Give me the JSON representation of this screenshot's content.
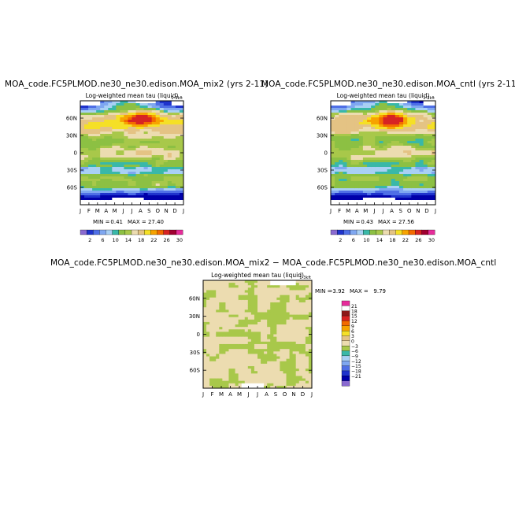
{
  "panels": [
    {
      "id": "mix2",
      "title": "MOA_code.FC5PLMOD.ne30_ne30.edison.MOA_mix2  (yrs 2-11)",
      "subtitle": "Log-weighted mean tau (liquid)",
      "unit": "1-3kft",
      "min_label": "MIN =",
      "min_value": "0.41",
      "max_label": "MAX =",
      "max_value": "27.40"
    },
    {
      "id": "cntl",
      "title": "MOA_code.FC5PLMOD.ne30_ne30.edison.MOA_cntl  (yrs 2-11)",
      "subtitle": "Log-weighted mean tau (liquid)",
      "unit": "1-3kft",
      "min_label": "MIN =",
      "min_value": "0.43",
      "max_label": "MAX =",
      "max_value": "27.56"
    },
    {
      "id": "diff",
      "title": "MOA_code.FC5PLMOD.ne30_ne30.edison.MOA_mix2 − MOA_code.FC5PLMOD.ne30_ne30.edison.MOA_cntl",
      "subtitle": "Log-weighted mean tau (liquid)",
      "unit": "1-3kft",
      "min_label": "MIN =",
      "min_value": "-3.92",
      "max_label": "MAX =",
      "max_value": "9.79"
    }
  ],
  "chart_data": [
    {
      "type": "heatmap",
      "title": "MOA_code.FC5PLMOD.ne30_ne30.edison.MOA_mix2  (yrs 2-11)",
      "subtitle": "Log-weighted mean tau (liquid)",
      "x_ticks": [
        "J",
        "F",
        "M",
        "A",
        "M",
        "J",
        "J",
        "A",
        "S",
        "O",
        "N",
        "D",
        "J"
      ],
      "y_ticks": [
        "60N",
        "30N",
        "0",
        "30S",
        "60S"
      ],
      "y_tick_values": [
        60,
        30,
        0,
        -30,
        -60
      ],
      "ylim": [
        -90,
        90
      ],
      "min": 0.41,
      "max": 27.4,
      "colorbar_labels": [
        "2",
        "6",
        "10",
        "14",
        "18",
        "22",
        "26",
        "30"
      ],
      "colorbar_colors": [
        "#8a6ad0",
        "#1f33cc",
        "#4f6fe6",
        "#7fa7f0",
        "#a9d0f4",
        "#39b8a8",
        "#8cc043",
        "#a8c84a",
        "#ecdcb0",
        "#e4c384",
        "#f5e026",
        "#f7a300",
        "#f36a00",
        "#d72323",
        "#a00030",
        "#e62c9a"
      ]
    },
    {
      "type": "heatmap",
      "title": "MOA_code.FC5PLMOD.ne30_ne30.edison.MOA_cntl  (yrs 2-11)",
      "subtitle": "Log-weighted mean tau (liquid)",
      "x_ticks": [
        "J",
        "F",
        "M",
        "A",
        "M",
        "J",
        "J",
        "A",
        "S",
        "O",
        "N",
        "D",
        "J"
      ],
      "y_ticks": [
        "60N",
        "30N",
        "0",
        "30S",
        "60S"
      ],
      "y_tick_values": [
        60,
        30,
        0,
        -30,
        -60
      ],
      "ylim": [
        -90,
        90
      ],
      "min": 0.43,
      "max": 27.56,
      "colorbar_labels": [
        "2",
        "6",
        "10",
        "14",
        "18",
        "22",
        "26",
        "30"
      ],
      "colorbar_colors": [
        "#8a6ad0",
        "#1f33cc",
        "#4f6fe6",
        "#7fa7f0",
        "#a9d0f4",
        "#39b8a8",
        "#8cc043",
        "#a8c84a",
        "#ecdcb0",
        "#e4c384",
        "#f5e026",
        "#f7a300",
        "#f36a00",
        "#d72323",
        "#a00030",
        "#e62c9a"
      ]
    },
    {
      "type": "heatmap",
      "title": "MOA_code.FC5PLMOD.ne30_ne30.edison.MOA_mix2 − MOA_code.FC5PLMOD.ne30_ne30.edison.MOA_cntl",
      "subtitle": "Log-weighted mean tau (liquid)",
      "x_ticks": [
        "J",
        "F",
        "M",
        "A",
        "M",
        "J",
        "J",
        "A",
        "S",
        "O",
        "N",
        "D",
        "J"
      ],
      "y_ticks": [
        "60N",
        "30N",
        "0",
        "30S",
        "60S"
      ],
      "y_tick_values": [
        60,
        30,
        0,
        -30,
        -60
      ],
      "ylim": [
        -90,
        90
      ],
      "min": -3.92,
      "max": 9.79,
      "colorbar_labels": [
        "21",
        "18",
        "15",
        "12",
        "9",
        "6",
        "3",
        "0",
        "−3",
        "−6",
        "−9",
        "−12",
        "−15",
        "−18",
        "−21"
      ],
      "colorbar_colors": [
        "#e62c9a",
        "#ffffff",
        "#8c1a1a",
        "#d72323",
        "#f36a00",
        "#f7a300",
        "#f5e026",
        "#e4c384",
        "#ecdcb0",
        "#a8c84a",
        "#39b8a8",
        "#a9d0f4",
        "#7fa7f0",
        "#4f6fe6",
        "#1f33cc",
        "#0000aa",
        "#8a6ad0"
      ]
    }
  ]
}
